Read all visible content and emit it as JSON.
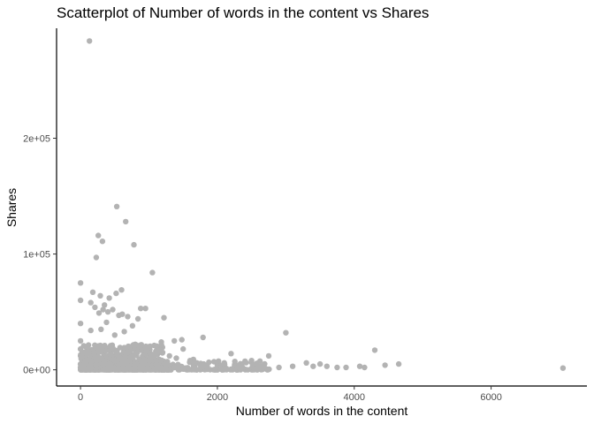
{
  "chart_data": {
    "type": "scatter",
    "title": "Scatterplot of Number of words in the content vs Shares",
    "xlabel": "Number of words in the content",
    "ylabel": "Shares",
    "xlim": [
      -350,
      7400
    ],
    "ylim": [
      -14000,
      295000
    ],
    "x_ticks": [
      0,
      2000,
      4000,
      6000
    ],
    "x_tick_labels": [
      "0",
      "2000",
      "4000",
      "6000"
    ],
    "y_ticks": [
      0,
      100000,
      200000
    ],
    "y_tick_labels": [
      "0e+00",
      "1e+05",
      "2e+05"
    ],
    "grid": false,
    "legend": "none",
    "point_color": "#b3b3b3",
    "points": [
      [
        130,
        284000
      ],
      [
        530,
        141000
      ],
      [
        660,
        128000
      ],
      [
        260,
        116000
      ],
      [
        320,
        111000
      ],
      [
        780,
        108000
      ],
      [
        230,
        97000
      ],
      [
        1050,
        84000
      ],
      [
        0,
        75000
      ],
      [
        600,
        69000
      ],
      [
        180,
        67000
      ],
      [
        520,
        66000
      ],
      [
        290,
        64000
      ],
      [
        420,
        62000
      ],
      [
        0,
        60000
      ],
      [
        150,
        58000
      ],
      [
        350,
        56000
      ],
      [
        210,
        54000
      ],
      [
        880,
        53000
      ],
      [
        950,
        53000
      ],
      [
        470,
        52000
      ],
      [
        330,
        52000
      ],
      [
        400,
        50000
      ],
      [
        270,
        49000
      ],
      [
        610,
        48000
      ],
      [
        560,
        47000
      ],
      [
        690,
        46000
      ],
      [
        1220,
        45000
      ],
      [
        840,
        44000
      ],
      [
        0,
        40000
      ],
      [
        380,
        41000
      ],
      [
        760,
        38000
      ],
      [
        1480,
        26000
      ],
      [
        300,
        35000
      ],
      [
        150,
        34000
      ],
      [
        640,
        33000
      ],
      [
        3000,
        32000
      ],
      [
        500,
        30000
      ],
      [
        1790,
        28000
      ],
      [
        1370,
        25000
      ],
      [
        1180,
        24000
      ],
      [
        4300,
        17000
      ],
      [
        4650,
        5000
      ],
      [
        4450,
        4000
      ],
      [
        7050,
        1500
      ],
      [
        2750,
        12000
      ],
      [
        2200,
        14000
      ],
      [
        2500,
        8000
      ],
      [
        3300,
        6000
      ],
      [
        3500,
        5000
      ],
      [
        3600,
        3000
      ],
      [
        3880,
        2000
      ],
      [
        4080,
        3000
      ],
      [
        4150,
        2000
      ],
      [
        3100,
        3000
      ],
      [
        2900,
        2000
      ],
      [
        1650,
        9000
      ],
      [
        1950,
        7000
      ],
      [
        2100,
        6000
      ],
      [
        2350,
        5000
      ],
      [
        1000,
        20000
      ],
      [
        1500,
        18000
      ],
      [
        1200,
        15000
      ],
      [
        800,
        22000
      ],
      [
        900,
        18000
      ],
      [
        1100,
        16000
      ],
      [
        1300,
        12000
      ],
      [
        1400,
        10000
      ],
      [
        1600,
        8000
      ],
      [
        1700,
        6000
      ],
      [
        1800,
        5000
      ],
      [
        2000,
        4000
      ],
      [
        2250,
        3000
      ],
      [
        2650,
        2500
      ],
      [
        0,
        25000
      ],
      [
        0,
        18000
      ],
      [
        0,
        12000
      ],
      [
        0,
        5000
      ],
      [
        0,
        2000
      ],
      [
        50,
        15000
      ],
      [
        3750,
        2000
      ],
      [
        3400,
        3000
      ]
    ]
  }
}
